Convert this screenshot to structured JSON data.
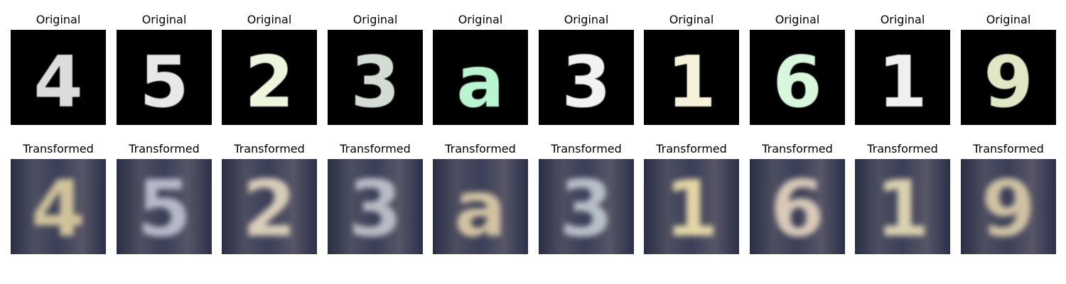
{
  "original_title": "Original",
  "transformed_title": "Transformed",
  "samples": [
    {
      "digit": "4",
      "ink": "#dcdcdc",
      "tint": "#cfc39a"
    },
    {
      "digit": "5",
      "ink": "#e8e8e8",
      "tint": "#b7b9c8"
    },
    {
      "digit": "2",
      "ink": "#eef5dd",
      "tint": "#d8cdb8"
    },
    {
      "digit": "3",
      "ink": "#d4ddd4",
      "tint": "#b9bcc4"
    },
    {
      "digit": "a",
      "ink": "#b9f5d0",
      "tint": "#d2c2a0"
    },
    {
      "digit": "3",
      "ink": "#f2f2f2",
      "tint": "#b9bfc8"
    },
    {
      "digit": "1",
      "ink": "#f6f2d9",
      "tint": "#e2d6a6"
    },
    {
      "digit": "6",
      "ink": "#d8f7dc",
      "tint": "#d8c9b8"
    },
    {
      "digit": "1",
      "ink": "#f0f0f0",
      "tint": "#dcd2b0"
    },
    {
      "digit": "9",
      "ink": "#dfe7c4",
      "tint": "#cfc2a2"
    }
  ]
}
